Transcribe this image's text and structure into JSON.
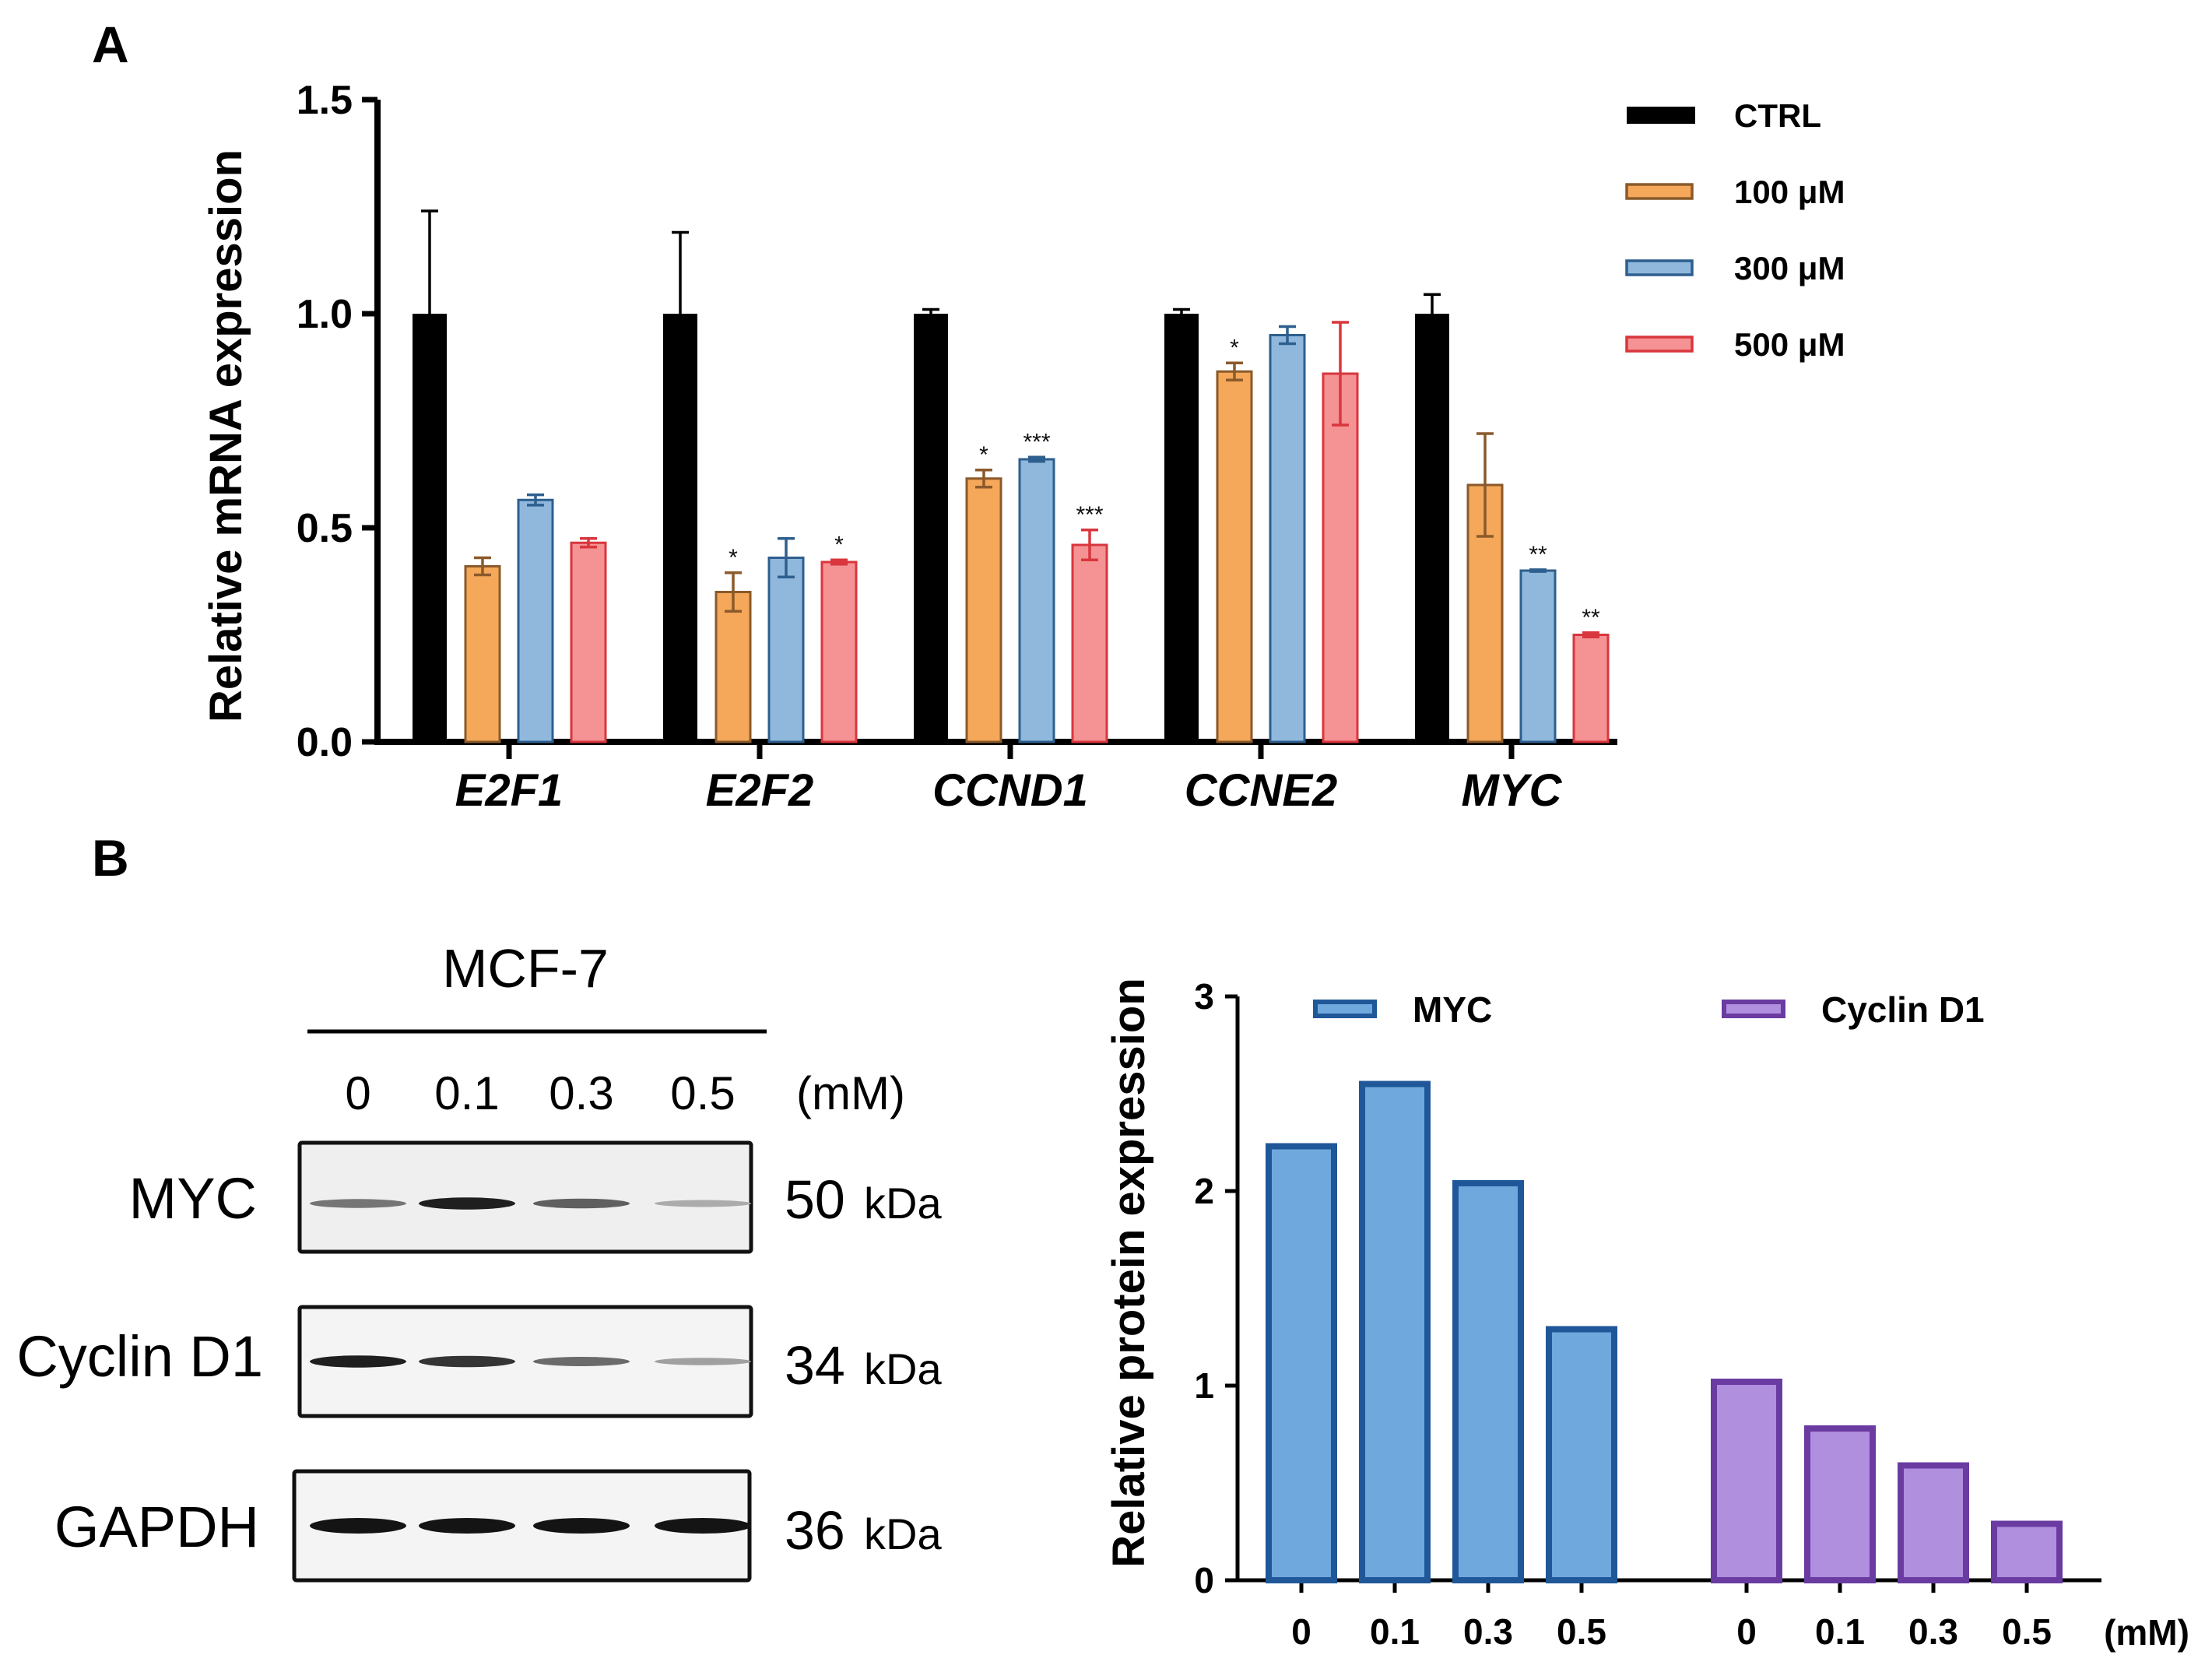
{
  "panel_labels": {
    "a": "A",
    "b": "B"
  },
  "colors": {
    "ctrl": "#000000",
    "uM100_fill": "#F5A85A",
    "uM100_edge": "#8A5A2B",
    "uM300_fill": "#90B8DC",
    "uM300_edge": "#2E5F8E",
    "uM500_fill": "#F59294",
    "uM500_edge": "#D9363D",
    "myc_fill": "#6FA8DC",
    "myc_edge": "#1F5799",
    "cyclin_fill": "#B08FDE",
    "cyclin_edge": "#6A3BA0"
  },
  "chart_data": [
    {
      "type": "bar",
      "title": "",
      "xlabel": "",
      "ylabel": "Relative mRNA expression",
      "ylim": [
        0,
        1.5
      ],
      "yticks": [
        0.0,
        0.5,
        1.0,
        1.5
      ],
      "ytick_labels": [
        "0.0",
        "0.5",
        "1.0",
        "1.5"
      ],
      "categories": [
        "E2F1",
        "E2F2",
        "CCND1",
        "CCNE2",
        "MYC"
      ],
      "legend_position": "top-right",
      "series": [
        {
          "name": "CTRL",
          "color_key": "ctrl",
          "values": [
            1.0,
            1.0,
            1.0,
            1.0,
            1.0
          ],
          "errors": [
            0.24,
            0.19,
            0.01,
            0.01,
            0.045
          ],
          "sig": [
            "",
            "",
            "",
            "",
            ""
          ]
        },
        {
          "name": "100 μM",
          "color_key": "uM100",
          "values": [
            0.41,
            0.35,
            0.615,
            0.865,
            0.6
          ],
          "errors": [
            0.02,
            0.045,
            0.02,
            0.02,
            0.12
          ],
          "sig": [
            "",
            "*",
            "*",
            "*",
            ""
          ]
        },
        {
          "name": "300 μM",
          "color_key": "uM300",
          "values": [
            0.565,
            0.43,
            0.66,
            0.95,
            0.4
          ],
          "errors": [
            0.012,
            0.045,
            0.005,
            0.02,
            0.002
          ],
          "sig": [
            "",
            "",
            "***",
            "",
            "**"
          ]
        },
        {
          "name": "500 μM",
          "color_key": "uM500",
          "values": [
            0.465,
            0.42,
            0.46,
            0.86,
            0.25
          ],
          "errors": [
            0.01,
            0.005,
            0.035,
            0.12,
            0.005
          ],
          "sig": [
            "",
            "*",
            "***",
            "",
            "**"
          ]
        }
      ]
    },
    {
      "type": "bar",
      "title": "",
      "xlabel": "(mM)",
      "ylabel": "Relative protein expression",
      "ylim": [
        0,
        3
      ],
      "yticks": [
        0,
        1,
        2,
        3
      ],
      "ytick_labels": [
        "0",
        "1",
        "2",
        "3"
      ],
      "legend_position": "top",
      "series": [
        {
          "name": "MYC",
          "color_key": "myc",
          "categories": [
            "0",
            "0.1",
            "0.3",
            "0.5"
          ],
          "values": [
            2.23,
            2.55,
            2.04,
            1.29
          ]
        },
        {
          "name": "Cyclin D1",
          "color_key": "cyclin",
          "categories": [
            "0",
            "0.1",
            "0.3",
            "0.5"
          ],
          "values": [
            1.02,
            0.78,
            0.59,
            0.29
          ]
        }
      ]
    }
  ],
  "blot": {
    "cell_line": "MCF-7",
    "doses": [
      "0",
      "0.1",
      "0.3",
      "0.5"
    ],
    "dose_unit": "(mM)",
    "rows": [
      {
        "protein": "MYC",
        "size_num": "50",
        "size_unit": "kDa",
        "intensity": [
          0.55,
          0.95,
          0.65,
          0.3
        ]
      },
      {
        "protein": "Cyclin D1",
        "size_num": "34",
        "size_unit": "kDa",
        "intensity": [
          0.95,
          0.85,
          0.6,
          0.35
        ]
      },
      {
        "protein": "GAPDH",
        "size_num": "36",
        "size_unit": "kDa",
        "intensity": [
          1.0,
          1.0,
          1.0,
          1.0
        ]
      }
    ]
  }
}
